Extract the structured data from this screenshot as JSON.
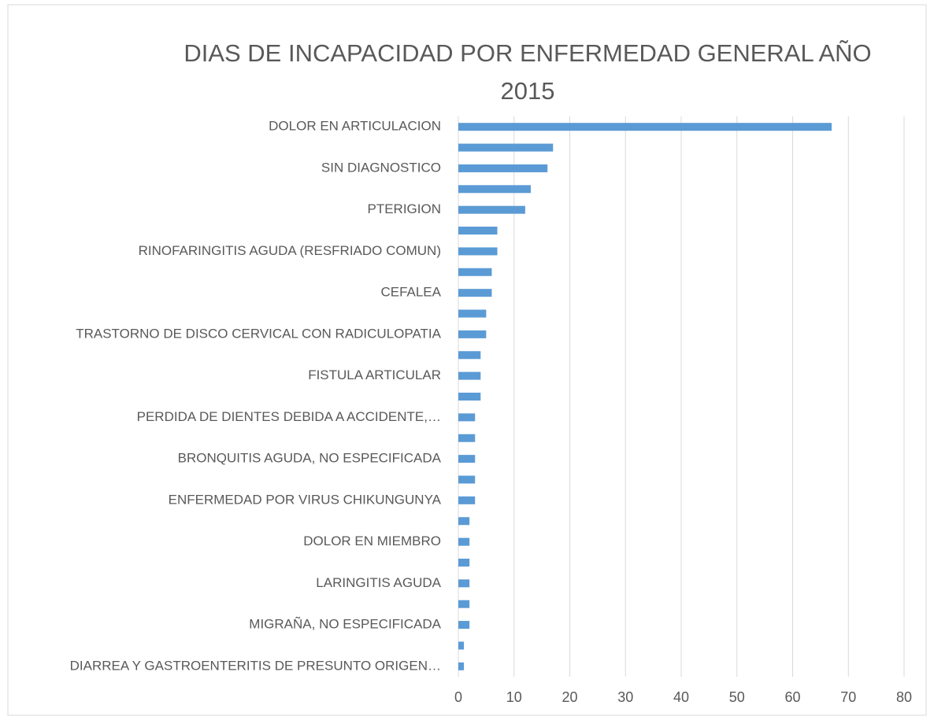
{
  "chart_data": {
    "type": "barh",
    "title": "DIAS DE INCAPACIDAD POR ENFERMEDAD GENERAL AÑO 2015",
    "categories": [
      "DOLOR EN ARTICULACION",
      null,
      "SIN DIAGNOSTICO",
      null,
      "PTERIGION",
      null,
      "RINOFARINGITIS AGUDA (RESFRIADO COMUN)",
      null,
      "CEFALEA",
      null,
      "TRASTORNO DE DISCO CERVICAL CON RADICULOPATIA",
      null,
      "FISTULA ARTICULAR",
      null,
      "PERDIDA DE DIENTES DEBIDA A ACCIDENTE,…",
      null,
      "BRONQUITIS AGUDA, NO ESPECIFICADA",
      null,
      "ENFERMEDAD POR VIRUS CHIKUNGUNYA",
      null,
      "DOLOR EN MIEMBRO",
      null,
      "LARINGITIS AGUDA",
      null,
      "MIGRAÑA, NO ESPECIFICADA",
      null,
      "DIARREA Y GASTROENTERITIS DE PRESUNTO ORIGEN…"
    ],
    "values": [
      67,
      17,
      16,
      13,
      12,
      7,
      7,
      6,
      6,
      5,
      5,
      4,
      4,
      4,
      3,
      3,
      3,
      3,
      3,
      2,
      2,
      2,
      2,
      2,
      2,
      1,
      1
    ],
    "color": "#5b9bd5",
    "xlim": [
      0,
      80
    ],
    "xticks": [
      0,
      10,
      20,
      30,
      40,
      50,
      60,
      70,
      80
    ],
    "grid": true
  }
}
